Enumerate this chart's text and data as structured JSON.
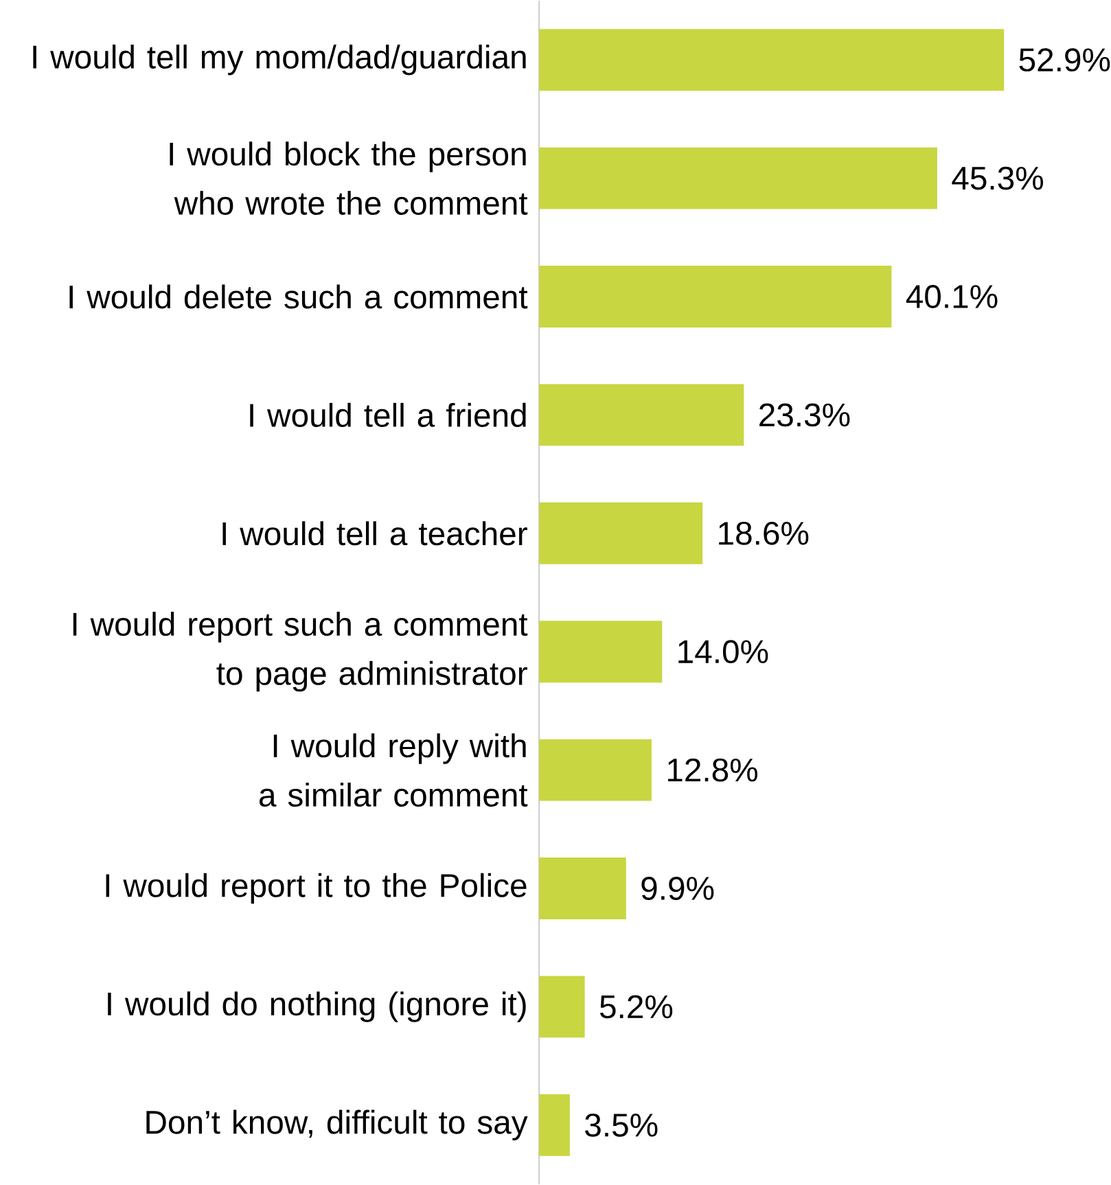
{
  "chart_data": {
    "type": "bar",
    "orientation": "horizontal",
    "categories": [
      "I would tell my mom/dad/guardian",
      "I would block the person who wrote the comment",
      "I would delete such a comment",
      "I would tell a friend",
      "I would tell a teacher",
      "I would report such a comment to page administrator",
      "I would reply with a similar comment",
      "I would report it to the Police",
      "I would do nothing (ignore it)",
      "Don’t know, difficult to say"
    ],
    "values": [
      52.9,
      45.3,
      40.1,
      23.3,
      18.6,
      14.0,
      12.8,
      9.9,
      5.2,
      3.5
    ],
    "value_labels": [
      "52.9%",
      "45.3%",
      "40.1%",
      "23.3%",
      "18.6%",
      "14.0%",
      "12.8%",
      "9.9%",
      "5.2%",
      "3.5%"
    ],
    "color": "#c8d641"
  }
}
